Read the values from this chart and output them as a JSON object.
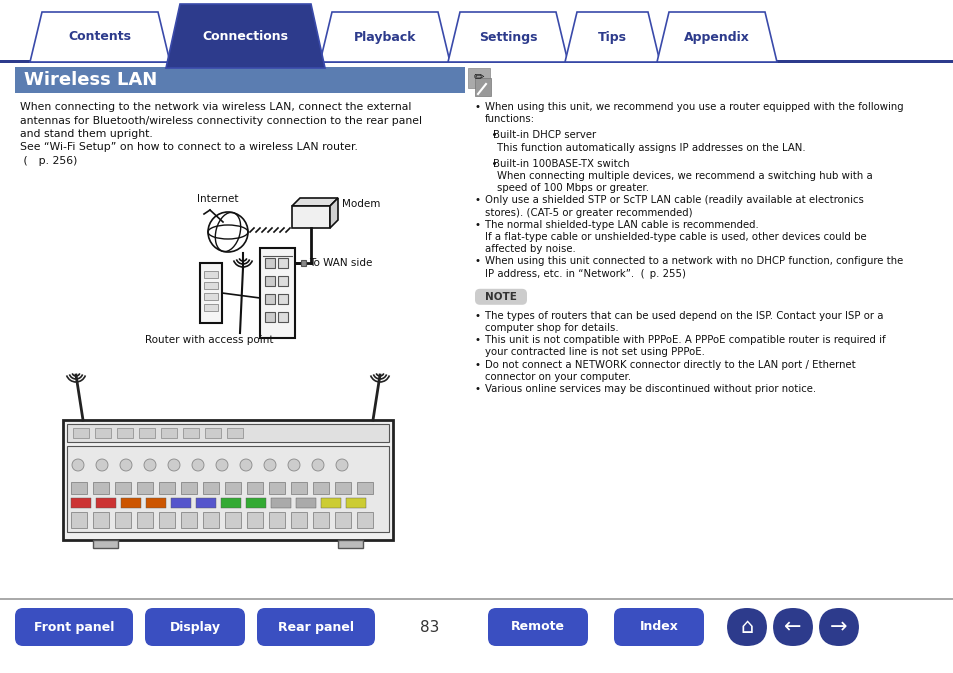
{
  "bg_color": "#ffffff",
  "top_tabs": [
    "Contents",
    "Connections",
    "Playback",
    "Settings",
    "Tips",
    "Appendix"
  ],
  "active_tab": "Connections",
  "active_tab_color": "#2d3b8c",
  "inactive_tab_color": "#ffffff",
  "tab_text_color_active": "#ffffff",
  "tab_text_color_inactive": "#2d3b8c",
  "tab_border_color": "#3a4aaa",
  "separator_color": "#2d3b8c",
  "section_title": "Wireless LAN",
  "section_title_bg": "#5b7db1",
  "section_title_color": "#ffffff",
  "body_line1": "When connecting to the network via wireless LAN, connect the external",
  "body_line2": "antennas for Bluetooth/wireless connectivity connection to the rear panel",
  "body_line3": "and stand them upright.",
  "body_line4": "See “Wi-Fi Setup” on how to connect to a wireless LAN router.",
  "body_line5": " (  p. 256)",
  "diag_internet": "Internet",
  "diag_modem": "Modem",
  "diag_wanside": "To WAN side",
  "diag_router": "Router with access point",
  "right_text": [
    [
      "•",
      "When using this unit, we recommend you use a router equipped with the following"
    ],
    [
      "",
      "functions:"
    ],
    [
      "",
      ""
    ],
    [
      "  •",
      "Built-in DHCP server"
    ],
    [
      "",
      "This function automatically assigns IP addresses on the LAN."
    ],
    [
      "",
      ""
    ],
    [
      "  •",
      "Built-in 100BASE-TX switch"
    ],
    [
      "",
      "When connecting multiple devices, we recommend a switching hub with a"
    ],
    [
      "",
      "speed of 100 Mbps or greater."
    ],
    [
      "•",
      "Only use a shielded STP or ScTP LAN cable (readily available at electronics"
    ],
    [
      "",
      "stores). (CAT-5 or greater recommended)"
    ],
    [
      "•",
      "The normal shielded-type LAN cable is recommended."
    ],
    [
      "",
      "If a flat-type cable or unshielded-type cable is used, other devices could be"
    ],
    [
      "",
      "affected by noise."
    ],
    [
      "•",
      "When using this unit connected to a network with no DHCP function, configure the"
    ],
    [
      "",
      "IP address, etc. in “Network”.  (  p. 255)"
    ]
  ],
  "note_label": "NOTE",
  "note_bg": "#cccccc",
  "note_text": [
    [
      "•",
      "The types of routers that can be used depend on the ISP. Contact your ISP or a"
    ],
    [
      "",
      "computer shop for details."
    ],
    [
      "•",
      "This unit is not compatible with PPPoE. A PPPoE compatible router is required if"
    ],
    [
      "",
      "your contracted line is not set using PPPoE."
    ],
    [
      "•",
      "Do not connect a NETWORK connector directly to the LAN port / Ethernet"
    ],
    [
      "",
      "connector on your computer."
    ],
    [
      "•",
      "Various online services may be discontinued without prior notice."
    ]
  ],
  "bottom_buttons": [
    "Front panel",
    "Display",
    "Rear panel",
    "Remote",
    "Index"
  ],
  "page_number": "83",
  "button_color": "#3a4fc1",
  "button_text_color": "#ffffff",
  "icon_color": "#2d3b8c"
}
